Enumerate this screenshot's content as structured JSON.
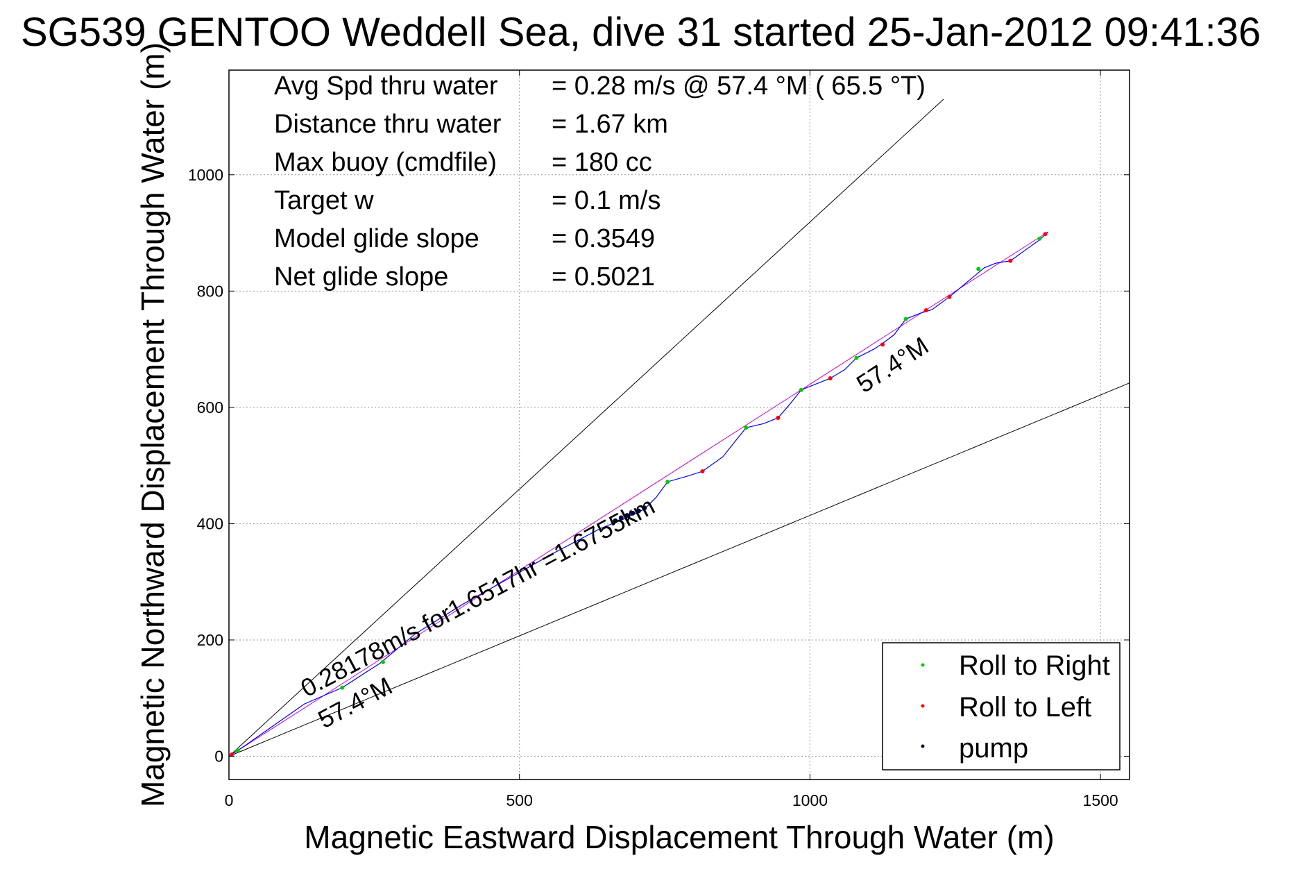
{
  "chart_data": {
    "type": "scatter",
    "title": "SG539 GENTOO Weddell Sea, dive 31 started 25-Jan-2012 09:41:36",
    "xlabel": "Magnetic Eastward Displacement Through Water (m)",
    "ylabel": "Magnetic Northward Displacement Through Water (m)",
    "xlim": [
      0,
      1550
    ],
    "ylim": [
      -40,
      1180
    ],
    "xticks": [
      0,
      500,
      1000,
      1500
    ],
    "yticks": [
      0,
      200,
      400,
      600,
      800,
      1000
    ],
    "grid": true,
    "legend_position": "bottom-right",
    "info_lines": [
      {
        "label": "Avg Spd thru water",
        "value": "=  0.28 m/s @  57.4 °M ( 65.5 °T)"
      },
      {
        "label": "Distance thru water",
        "value": "=  1.67 km"
      },
      {
        "label": "Max buoy (cmdfile)",
        "value": "= 180 cc"
      },
      {
        "label": "Target w",
        "value": "= 0.1 m/s"
      },
      {
        "label": "Model glide slope",
        "value": "= 0.3549"
      },
      {
        "label": "Net glide slope",
        "value": "= 0.5021"
      }
    ],
    "annotations": {
      "speed_text": "0.28178m/s for1.6517hr =1.6755km",
      "heading_lower": "57.4°M",
      "heading_upper": "57.4°M"
    },
    "guide_lines": [
      {
        "name": "upper-bound",
        "x": [
          0,
          1230
        ],
        "y": [
          0,
          1130
        ]
      },
      {
        "name": "lower-bound",
        "x": [
          0,
          1550
        ],
        "y": [
          0,
          642
        ]
      },
      {
        "name": "heading-57.4M",
        "x": [
          0,
          1410
        ],
        "y": [
          0,
          902
        ]
      }
    ],
    "track": {
      "x": [
        0,
        30,
        80,
        130,
        195,
        260,
        320,
        400,
        480,
        560,
        640,
        680,
        715,
        735,
        755,
        790,
        815,
        850,
        890,
        920,
        945,
        965,
        985,
        1010,
        1035,
        1060,
        1080,
        1110,
        1125,
        1145,
        1165,
        1190,
        1210,
        1240,
        1270,
        1300,
        1320,
        1345,
        1370,
        1395,
        1410
      ],
      "y": [
        0,
        20,
        55,
        90,
        118,
        160,
        210,
        260,
        305,
        350,
        392,
        408,
        425,
        445,
        472,
        482,
        490,
        515,
        565,
        572,
        582,
        605,
        630,
        640,
        650,
        665,
        685,
        700,
        710,
        725,
        752,
        762,
        768,
        790,
        815,
        840,
        848,
        852,
        870,
        888,
        902
      ],
      "color": "#0000ff"
    },
    "series": [
      {
        "name": "Roll to Right",
        "color": "#00cc00",
        "x": [
          15,
          195,
          265,
          755,
          890,
          985,
          1080,
          1165,
          1290,
          1395
        ],
        "y": [
          10,
          118,
          162,
          472,
          565,
          630,
          685,
          752,
          838,
          890
        ]
      },
      {
        "name": "Roll to Left",
        "color": "#ff0000",
        "x": [
          5,
          815,
          945,
          1035,
          1125,
          1200,
          1240,
          1345,
          1405
        ],
        "y": [
          3,
          490,
          582,
          650,
          708,
          767,
          790,
          852,
          898
        ]
      },
      {
        "name": "pump",
        "color": "#000044",
        "x": [
          665,
          675,
          685,
          695,
          705,
          715
        ],
        "y": [
          405,
          410,
          414,
          418,
          422,
          427
        ]
      }
    ]
  }
}
